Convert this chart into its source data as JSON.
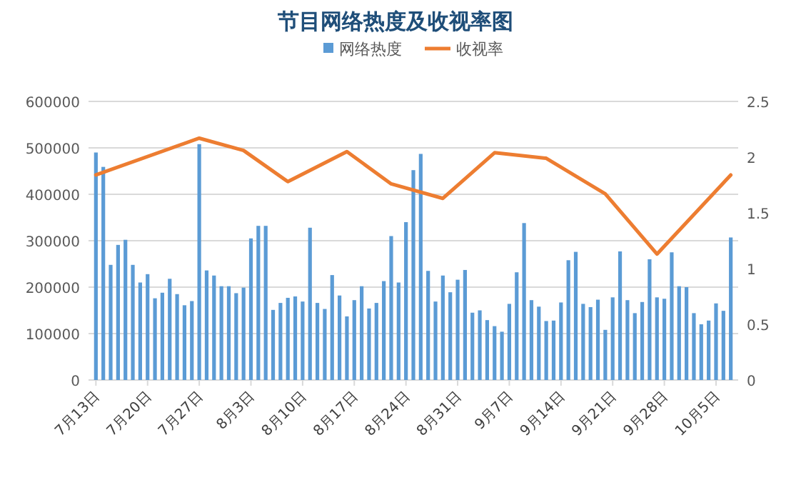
{
  "chart_data": {
    "type": "bar",
    "title": "节目网络热度及收视率图",
    "x": [
      "--07-13",
      "--07-14",
      "--07-15",
      "--07-16",
      "--07-17",
      "--07-18",
      "--07-19",
      "--07-20",
      "--07-21",
      "--07-22",
      "--07-23",
      "--07-24",
      "--07-25",
      "--07-26",
      "--07-27",
      "--07-28",
      "--07-29",
      "--07-30",
      "--07-31",
      "--08-01",
      "--08-02",
      "--08-03",
      "--08-04",
      "--08-05",
      "--08-06",
      "--08-07",
      "--08-08",
      "--08-09",
      "--08-10",
      "--08-11",
      "--08-12",
      "--08-13",
      "--08-14",
      "--08-15",
      "--08-16",
      "--08-17",
      "--08-18",
      "--08-19",
      "--08-20",
      "--08-21",
      "--08-22",
      "--08-23",
      "--08-24",
      "--08-25",
      "--08-26",
      "--08-27",
      "--08-28",
      "--08-29",
      "--08-30",
      "--08-31",
      "--09-01",
      "--09-02",
      "--09-03",
      "--09-04",
      "--09-05",
      "--09-06",
      "--09-07",
      "--09-08",
      "--09-09",
      "--09-10",
      "--09-11",
      "--09-12",
      "--09-13",
      "--09-14",
      "--09-15",
      "--09-16",
      "--09-17",
      "--09-18",
      "--09-19",
      "--09-20",
      "--09-21",
      "--09-22",
      "--09-23",
      "--09-24",
      "--09-25",
      "--09-26",
      "--09-27",
      "--09-28",
      "--09-29",
      "--09-30",
      "--10-01",
      "--10-02",
      "--10-03",
      "--10-04",
      "--10-05",
      "--10-06",
      "--10-07"
    ],
    "series": [
      {
        "name": "网络热度",
        "color": "#5b9bd5",
        "values": [
          490000,
          459000,
          248000,
          291000,
          302000,
          248000,
          210000,
          228000,
          176000,
          188000,
          218000,
          185000,
          161000,
          170000,
          508000,
          236000,
          225000,
          202000,
          202000,
          187000,
          199000,
          305000,
          332000,
          332000,
          151000,
          166000,
          177000,
          180000,
          169000,
          328000,
          166000,
          153000,
          226000,
          182000,
          137000,
          172000,
          202000,
          154000,
          166000,
          213000,
          310000,
          210000,
          340000,
          452000,
          487000,
          235000,
          169000,
          225000,
          189000,
          216000,
          237000,
          145000,
          150000,
          129000,
          116000,
          104000,
          164000,
          232000,
          338000,
          172000,
          158000,
          127000,
          128000,
          167000,
          258000,
          276000,
          164000,
          157000,
          173000,
          108000,
          178000,
          277000,
          172000,
          144000,
          168000,
          260000,
          178000,
          175000,
          275000,
          202000,
          200000,
          144000,
          120000,
          128000,
          165000,
          149000,
          307000
        ]
      },
      {
        "name": "收视率",
        "type": "line",
        "axis": "y2",
        "color": "#ed7d31",
        "x": [
          "--07-13",
          "--07-27",
          "--08-02",
          "--08-08",
          "--08-16",
          "--08-22",
          "--08-29",
          "--09-05",
          "--09-12",
          "--09-20",
          "--09-27",
          "--10-07"
        ],
        "values": [
          1.84,
          2.17,
          2.06,
          1.78,
          2.05,
          1.76,
          1.63,
          2.04,
          1.99,
          1.67,
          1.13,
          1.84
        ]
      }
    ],
    "xlim": [
      "--07-12",
      "--10-08"
    ],
    "xticks": [
      {
        "value": "--07-13",
        "label": "7月13日"
      },
      {
        "value": "--07-20",
        "label": "7月20日"
      },
      {
        "value": "--07-27",
        "label": "7月27日"
      },
      {
        "value": "--08-03",
        "label": "8月3日"
      },
      {
        "value": "--08-10",
        "label": "8月10日"
      },
      {
        "value": "--08-17",
        "label": "8月17日"
      },
      {
        "value": "--08-24",
        "label": "8月24日"
      },
      {
        "value": "--08-31",
        "label": "8月31日"
      },
      {
        "value": "--09-07",
        "label": "9月7日"
      },
      {
        "value": "--09-14",
        "label": "9月14日"
      },
      {
        "value": "--09-21",
        "label": "9月21日"
      },
      {
        "value": "--09-28",
        "label": "9月28日"
      },
      {
        "value": "--10-05",
        "label": "10月5日"
      }
    ],
    "ylim": [
      0,
      600000
    ],
    "yticks": [
      0,
      100000,
      200000,
      300000,
      400000,
      500000,
      600000
    ],
    "y2lim": [
      0,
      2.5
    ],
    "y2ticks": [
      0,
      0.5,
      1,
      1.5,
      2,
      2.5
    ],
    "grid": "y",
    "legend": "top"
  }
}
